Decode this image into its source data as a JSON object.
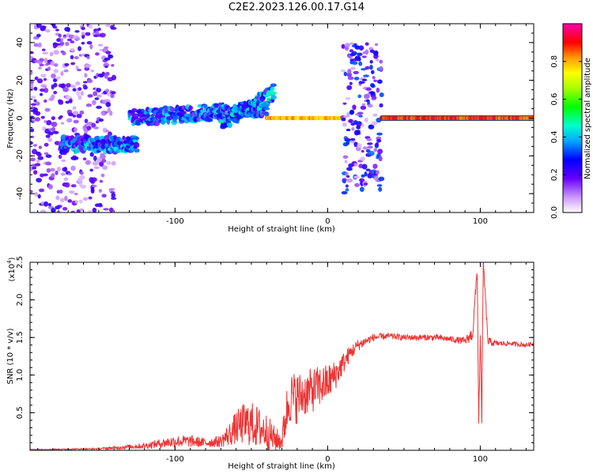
{
  "title": "C2E2.2023.126.00.17.G14",
  "chart_data": [
    {
      "type": "heatmap",
      "xlabel": "Height of straight line (km)",
      "ylabel": "Frequency (Hz)",
      "xlim": [
        -195,
        135
      ],
      "ylim": [
        -50,
        50
      ],
      "xticks": [
        -100,
        0,
        100
      ],
      "yticks": [
        -40,
        -20,
        0,
        20,
        40
      ],
      "colorbar": {
        "label": "Normalized spectral amplitude",
        "range": [
          0,
          1
        ],
        "ticks": [
          0.0,
          0.2,
          0.4,
          0.6,
          0.8
        ],
        "tick_labels": [
          "0.0",
          "0.2",
          "0.4",
          "0.6",
          "0.8"
        ]
      },
      "features": [
        {
          "x0": -195,
          "x1": -140,
          "frequency_spread": 50,
          "center_freq": 0,
          "peak_amplitude": 0.2
        },
        {
          "x0": -175,
          "x1": -125,
          "center_freq": -14,
          "peak_amplitude": 0.45
        },
        {
          "x0": -130,
          "x1": -40,
          "center_freq_start": 0,
          "center_freq_end": 5,
          "peak_amplitude": 0.45
        },
        {
          "x0": -70,
          "x1": -35,
          "center_freq_start": -3,
          "center_freq_end": 14,
          "peak_amplitude": 0.5
        },
        {
          "x0": -40,
          "x1": 10,
          "center_freq": 0,
          "peak_amplitude": 0.85
        },
        {
          "x0": 10,
          "x1": 35,
          "frequency_spread": 40,
          "center_freq": 0,
          "peak_amplitude": 0.3
        },
        {
          "x0": 35,
          "x1": 135,
          "center_freq": 0,
          "peak_amplitude": 0.95
        }
      ]
    },
    {
      "type": "line",
      "xlabel": "Height of straight line (km)",
      "ylabel": "SNR (10 * v/v)",
      "y_multiplier_label": "(x10",
      "y_multiplier_exp": "4",
      "y_multiplier_close": ")",
      "xlim": [
        -195,
        135
      ],
      "ylim": [
        0,
        2.5
      ],
      "xticks": [
        -100,
        0,
        100
      ],
      "yticks": [
        0.5,
        1.0,
        1.5,
        2.0,
        2.5
      ],
      "ytick_labels": [
        "0.5",
        "1.0",
        "1.5",
        "2.0",
        "2.5"
      ],
      "color": "#ee3333",
      "series": [
        {
          "x": [
            -195,
            -150,
            -120,
            -100,
            -90,
            -80,
            -70,
            -65,
            -60,
            -55,
            -50,
            -45,
            -40,
            -35,
            -30,
            -28,
            -25,
            -20,
            -15,
            -10,
            -5,
            0,
            5,
            10,
            15,
            20,
            25,
            30,
            40,
            50,
            60,
            70,
            80,
            90,
            95,
            98,
            99,
            100,
            101,
            102,
            105,
            110,
            120,
            130,
            135
          ],
          "y": [
            0.01,
            0.02,
            0.06,
            0.12,
            0.12,
            0.1,
            0.12,
            0.2,
            0.3,
            0.35,
            0.35,
            0.3,
            0.25,
            0.15,
            0.12,
            0.4,
            0.7,
            0.7,
            0.75,
            0.8,
            0.85,
            0.9,
            1.0,
            1.15,
            1.3,
            1.4,
            1.45,
            1.5,
            1.52,
            1.5,
            1.5,
            1.5,
            1.48,
            1.45,
            1.55,
            2.4,
            0.4,
            1.5,
            0.45,
            2.5,
            1.45,
            1.42,
            1.42,
            1.4,
            1.42
          ],
          "noise": [
            0.004,
            0.01,
            0.04,
            0.08,
            0.08,
            0.06,
            0.08,
            0.15,
            0.22,
            0.28,
            0.3,
            0.28,
            0.25,
            0.18,
            0.12,
            0.3,
            0.35,
            0.35,
            0.3,
            0.3,
            0.28,
            0.25,
            0.2,
            0.15,
            0.1,
            0.08,
            0.06,
            0.05,
            0.04,
            0.04,
            0.04,
            0.04,
            0.04,
            0.05,
            0.1,
            0.1,
            0.1,
            0.1,
            0.1,
            0.1,
            0.06,
            0.04,
            0.03,
            0.03,
            0.03
          ]
        }
      ]
    }
  ]
}
